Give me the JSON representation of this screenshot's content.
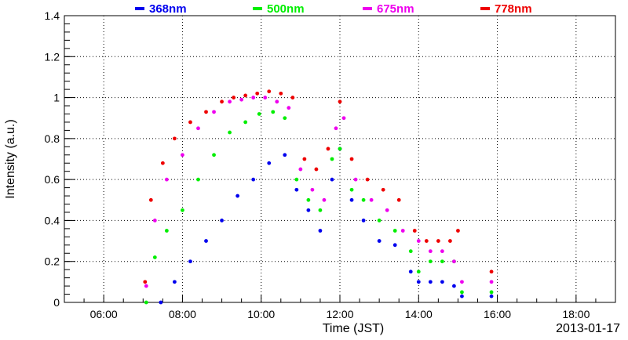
{
  "chart_data": {
    "type": "scatter",
    "title": "",
    "xlabel": "Time (JST)",
    "ylabel": "Intensity (a.u.)",
    "date_label": "2013-01-17",
    "xlim": [
      5.0,
      19.0
    ],
    "ylim": [
      0,
      1.4
    ],
    "x_ticks": [
      6,
      8,
      10,
      12,
      14,
      16,
      18
    ],
    "x_tick_labels": [
      "06:00",
      "08:00",
      "10:00",
      "12:00",
      "14:00",
      "16:00",
      "18:00"
    ],
    "y_ticks": [
      0,
      0.2,
      0.4,
      0.6,
      0.8,
      1,
      1.2,
      1.4
    ],
    "y_tick_labels": [
      "0",
      "0.2",
      "0.4",
      "0.6",
      "0.8",
      "1",
      "1.2",
      "1.4"
    ],
    "grid": true,
    "legend_position": "top",
    "series": [
      {
        "name": "368nm",
        "color": "#0000ee",
        "x": [
          7.45,
          7.8,
          8.2,
          8.6,
          9.0,
          9.4,
          9.8,
          10.2,
          10.6,
          10.9,
          11.2,
          11.5,
          11.8,
          12.0,
          12.3,
          12.6,
          13.0,
          13.4,
          13.8,
          14.0,
          14.3,
          14.6,
          14.9,
          15.1,
          15.85
        ],
        "y": [
          0.0,
          0.1,
          0.2,
          0.3,
          0.4,
          0.52,
          0.6,
          0.68,
          0.72,
          0.55,
          0.45,
          0.35,
          0.6,
          0.75,
          0.5,
          0.4,
          0.3,
          0.28,
          0.15,
          0.1,
          0.1,
          0.1,
          0.08,
          0.03,
          0.03
        ]
      },
      {
        "name": "500nm",
        "color": "#00ee00",
        "x": [
          7.08,
          7.3,
          7.6,
          8.0,
          8.4,
          8.8,
          9.2,
          9.6,
          9.95,
          10.3,
          10.6,
          10.9,
          11.2,
          11.5,
          11.8,
          12.0,
          12.3,
          12.6,
          13.0,
          13.4,
          13.8,
          14.0,
          14.3,
          14.6,
          14.9,
          15.1,
          15.85
        ],
        "y": [
          0.0,
          0.22,
          0.35,
          0.45,
          0.6,
          0.72,
          0.83,
          0.88,
          0.92,
          0.93,
          0.9,
          0.6,
          0.5,
          0.45,
          0.7,
          0.75,
          0.55,
          0.5,
          0.4,
          0.35,
          0.25,
          0.15,
          0.2,
          0.2,
          0.2,
          0.05,
          0.05
        ]
      },
      {
        "name": "675nm",
        "color": "#ee00ee",
        "x": [
          7.08,
          7.3,
          7.6,
          8.0,
          8.4,
          8.8,
          9.2,
          9.5,
          9.8,
          10.1,
          10.4,
          10.7,
          11.0,
          11.3,
          11.6,
          11.9,
          12.1,
          12.4,
          12.8,
          13.2,
          13.6,
          14.0,
          14.3,
          14.6,
          14.9,
          15.1,
          15.85
        ],
        "y": [
          0.08,
          0.4,
          0.6,
          0.72,
          0.85,
          0.93,
          0.98,
          0.99,
          1.0,
          1.0,
          0.98,
          0.95,
          0.65,
          0.55,
          0.5,
          0.85,
          0.9,
          0.6,
          0.5,
          0.45,
          0.35,
          0.3,
          0.25,
          0.25,
          0.2,
          0.1,
          0.1
        ]
      },
      {
        "name": "778nm",
        "color": "#ee0000",
        "x": [
          7.05,
          7.2,
          7.5,
          7.8,
          8.2,
          8.6,
          9.0,
          9.3,
          9.6,
          9.9,
          10.2,
          10.5,
          10.8,
          11.1,
          11.4,
          11.7,
          12.0,
          12.3,
          12.7,
          13.1,
          13.5,
          13.9,
          14.2,
          14.5,
          14.8,
          15.0,
          15.85
        ],
        "y": [
          0.1,
          0.5,
          0.68,
          0.8,
          0.88,
          0.93,
          0.98,
          1.0,
          1.01,
          1.02,
          1.03,
          1.02,
          1.0,
          0.7,
          0.65,
          0.75,
          0.98,
          0.7,
          0.6,
          0.55,
          0.5,
          0.35,
          0.3,
          0.3,
          0.3,
          0.35,
          0.15
        ]
      }
    ]
  }
}
